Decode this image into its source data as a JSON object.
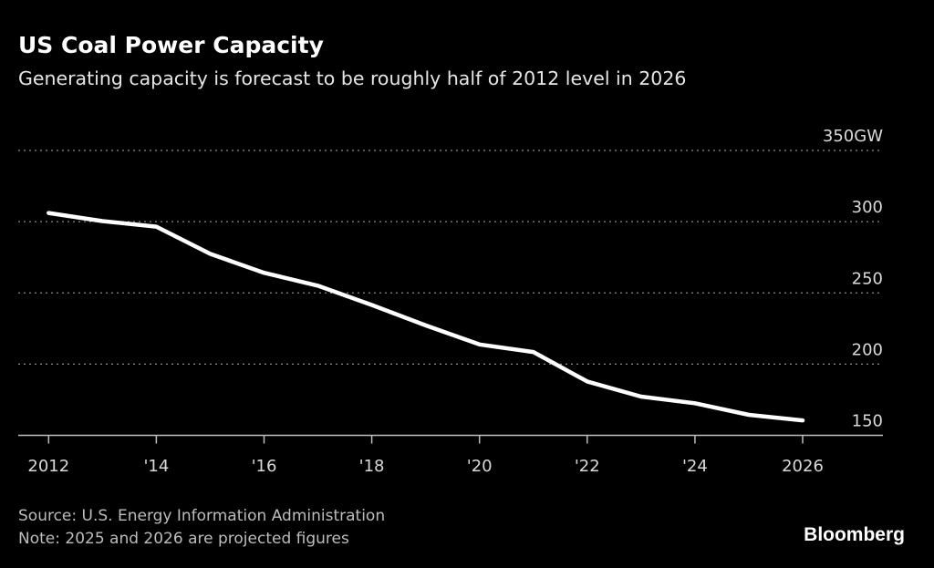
{
  "header": {
    "title": "US Coal Power Capacity",
    "subtitle": "Generating capacity is forecast to be roughly half of 2012 level in 2026"
  },
  "footer": {
    "source": "Source: U.S. Energy Information Administration",
    "note": "Note: 2025 and 2026 are projected figures",
    "logo": "Bloomberg"
  },
  "colors": {
    "background": "#000000",
    "line": "#ffffff",
    "grid": "#8a8a8a"
  },
  "chart_data": {
    "type": "line",
    "title": "US Coal Power Capacity",
    "subtitle": "Generating capacity is forecast to be roughly half of 2012 level in 2026",
    "x": [
      2012,
      2013,
      2014,
      2015,
      2016,
      2017,
      2018,
      2019,
      2020,
      2021,
      2022,
      2023,
      2024,
      2025,
      2026
    ],
    "series": [
      {
        "values": [
          306.1,
          300.4,
          296.5,
          277.4,
          264.1,
          255.0,
          241.5,
          227.2,
          213.8,
          208.5,
          187.8,
          177.2,
          172.5,
          164.4,
          160.5
        ]
      }
    ],
    "xlim": [
      2012,
      2026
    ],
    "ylim": [
      150,
      350
    ],
    "x_ticks": [
      2012,
      2014,
      2016,
      2018,
      2020,
      2022,
      2024,
      2026
    ],
    "x_tick_labels": [
      "2012",
      "'14",
      "'16",
      "'18",
      "'20",
      "'22",
      "'24",
      "2026"
    ],
    "y_ticks": [
      150,
      200,
      250,
      300,
      350
    ],
    "y_tick_labels": [
      "150",
      "200",
      "250",
      "300",
      "350GW"
    ],
    "y_axis_side": "right",
    "grid": "horizontal dotted",
    "legend": "none"
  }
}
